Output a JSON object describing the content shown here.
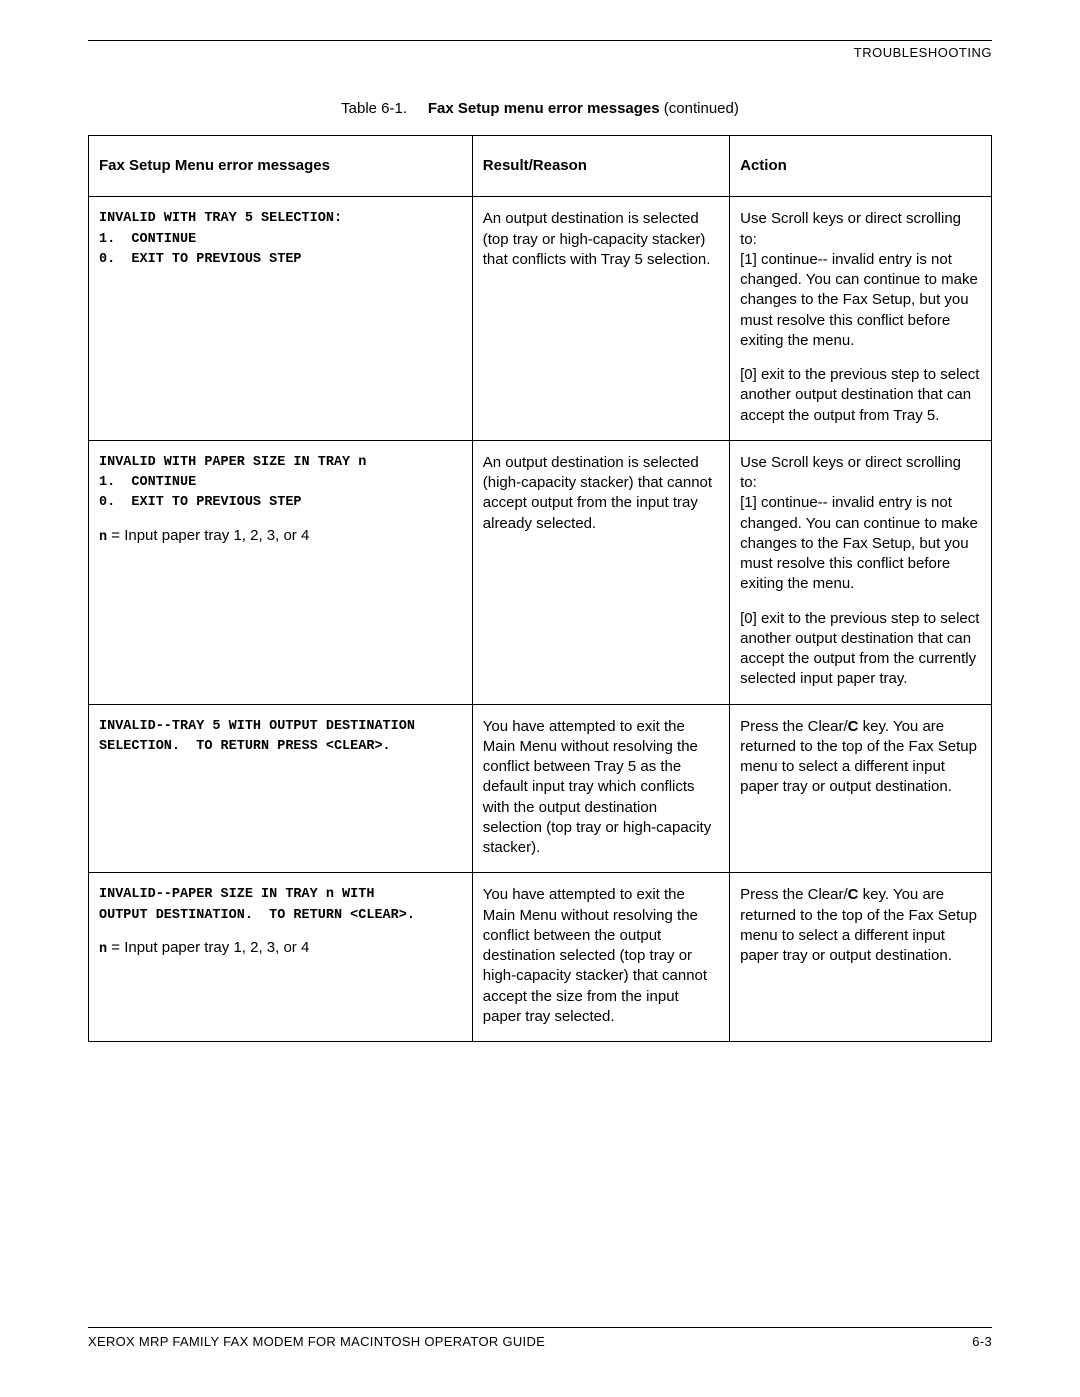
{
  "header": {
    "section": "TROUBLESHOOTING"
  },
  "caption": {
    "prefix": "Table 6-1.",
    "title": "Fax Setup menu error messages",
    "suffix": " (continued)"
  },
  "columns": {
    "c1": "Fax Setup Menu error messages",
    "c2": "Result/Reason",
    "c3": "Action"
  },
  "rows": [
    {
      "mono": "INVALID WITH TRAY 5 SELECTION:\n1.  CONTINUE\n0.  EXIT TO PREVIOUS STEP",
      "note_n": "",
      "note_rest": "",
      "reason": "An output destination is selected (top tray or high-capacity stacker) that conflicts with Tray 5 selection.",
      "action_p1": "Use Scroll keys or direct scrolling to:\n[1] continue-- invalid entry is not changed.  You can continue to make changes to the Fax Setup, but you must resolve this conflict before exiting the menu.",
      "action_p2": "[0] exit to the previous step to select another output destination that can accept the output from Tray 5.",
      "action_boldkey": ""
    },
    {
      "mono": "INVALID WITH PAPER SIZE IN TRAY n\n1.  CONTINUE\n0.  EXIT TO PREVIOUS STEP",
      "note_n": "n",
      "note_rest": " = Input paper tray 1, 2, 3, or 4",
      "reason": "An output destination is selected (high-capacity stacker) that cannot accept output from the input tray already selected.",
      "action_p1": "Use Scroll keys or direct scrolling to:\n[1] continue-- invalid entry is not changed.  You can continue to make changes to the Fax Setup, but you must resolve this conflict before exiting the menu.",
      "action_p2": "[0] exit to the previous step to select another output destination that can accept the output from the currently selected input paper tray.",
      "action_boldkey": ""
    },
    {
      "mono": "INVALID--TRAY 5 WITH OUTPUT DESTINATION SELECTION.  TO RETURN PRESS <CLEAR>.",
      "note_n": "",
      "note_rest": "",
      "reason": "You have attempted to exit the Main Menu without resolving the conflict between Tray 5 as the default input tray which conflicts with the output destination selection (top tray or high-capacity stacker).",
      "action_p1_pre": "Press the Clear/",
      "action_boldkey": "C",
      "action_p1_post": " key.  You are returned to the top of the Fax Setup menu to select a different input paper tray or output destination.",
      "action_p2": ""
    },
    {
      "mono": "INVALID--PAPER SIZE IN TRAY n WITH\nOUTPUT DESTINATION.  TO RETURN <CLEAR>.",
      "note_n": "n",
      "note_rest": " = Input paper tray 1, 2, 3, or 4",
      "reason": "You have attempted to exit the Main Menu without resolving the conflict between the output destination selected (top tray or high-capacity stacker) that cannot accept the size from the input paper tray selected.",
      "action_p1_pre": "Press the Clear/",
      "action_boldkey": "C",
      "action_p1_post": " key.  You are returned to the top of the Fax Setup menu to select a different input paper tray or output destination.",
      "action_p2": ""
    }
  ],
  "footer": {
    "left": "XEROX MRP FAMILY FAX MODEM FOR MACINTOSH OPERATOR GUIDE",
    "right": "6-3"
  }
}
